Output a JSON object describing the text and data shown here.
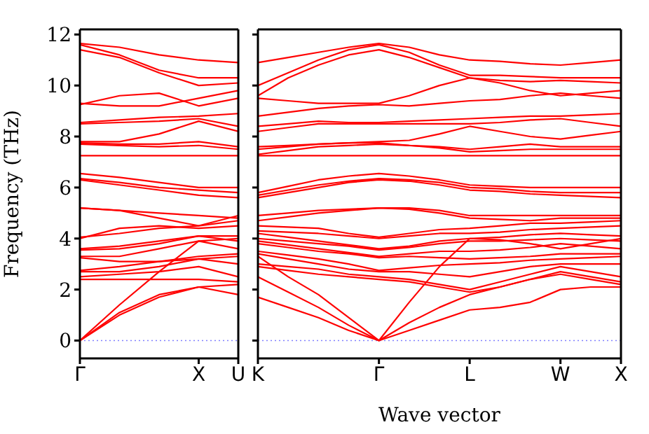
{
  "chart_data": [
    {
      "type": "line",
      "ylabel": "Frequency (THz)",
      "color": "#ff0000",
      "categories": [
        "Γ",
        null,
        null,
        "X",
        "U"
      ],
      "ylim": [
        -0.7,
        12.2
      ],
      "yticks": [
        0,
        2,
        4,
        6,
        8,
        10,
        12
      ],
      "ref_lines": [
        {
          "axis": "y",
          "value": 0,
          "label": null,
          "color": "#8080ff",
          "line_style": "dotted"
        }
      ],
      "series": [
        {
          "values": [
            0,
            1.0,
            1.7,
            2.1,
            1.8
          ]
        },
        {
          "values": [
            0,
            1.1,
            1.8,
            2.1,
            2.2
          ]
        },
        {
          "values": [
            0,
            1.4,
            2.7,
            3.9,
            4.0
          ]
        },
        {
          "values": [
            2.4,
            2.4,
            2.4,
            2.4,
            2.3
          ]
        },
        {
          "values": [
            2.5,
            2.6,
            2.7,
            2.9,
            2.5
          ]
        },
        {
          "values": [
            2.7,
            2.7,
            2.9,
            3.2,
            3.0
          ]
        },
        {
          "values": [
            2.75,
            2.9,
            3.1,
            3.2,
            3.3
          ]
        },
        {
          "values": [
            3.25,
            3.1,
            3.1,
            3.3,
            3.4
          ]
        },
        {
          "values": [
            3.3,
            3.3,
            3.6,
            3.9,
            3.6
          ]
        },
        {
          "values": [
            3.55,
            3.6,
            3.8,
            4.1,
            3.9
          ]
        },
        {
          "values": [
            3.6,
            3.7,
            3.9,
            4.1,
            4.1
          ]
        },
        {
          "values": [
            4.0,
            4.4,
            4.5,
            4.4,
            4.5
          ]
        },
        {
          "values": [
            4.05,
            4.2,
            4.4,
            4.5,
            4.7
          ]
        },
        {
          "values": [
            5.2,
            5.1,
            5.0,
            4.9,
            4.8
          ]
        },
        {
          "values": [
            5.2,
            5.1,
            4.8,
            4.5,
            4.9
          ]
        },
        {
          "values": [
            6.3,
            6.1,
            5.9,
            5.7,
            5.6
          ]
        },
        {
          "values": [
            6.35,
            6.2,
            6.0,
            5.9,
            5.8
          ]
        },
        {
          "values": [
            6.55,
            6.4,
            6.2,
            6.0,
            6.0
          ]
        },
        {
          "values": [
            7.25,
            7.25,
            7.25,
            7.25,
            7.25
          ]
        },
        {
          "values": [
            7.7,
            7.65,
            7.6,
            7.65,
            7.5
          ]
        },
        {
          "values": [
            7.75,
            7.7,
            7.7,
            7.8,
            7.6
          ]
        },
        {
          "values": [
            7.8,
            7.8,
            8.1,
            8.6,
            8.2
          ]
        },
        {
          "values": [
            8.5,
            8.55,
            8.6,
            8.7,
            8.4
          ]
        },
        {
          "values": [
            8.55,
            8.65,
            8.75,
            8.8,
            8.9
          ]
        },
        {
          "values": [
            9.25,
            9.6,
            9.7,
            9.2,
            9.5
          ]
        },
        {
          "values": [
            9.3,
            9.2,
            9.2,
            9.5,
            9.8
          ]
        },
        {
          "values": [
            11.4,
            11.1,
            10.5,
            10.0,
            10.1
          ]
        },
        {
          "values": [
            11.6,
            11.2,
            10.6,
            10.3,
            10.3
          ]
        },
        {
          "values": [
            11.65,
            11.5,
            11.2,
            11.0,
            10.9
          ]
        }
      ]
    },
    {
      "type": "line",
      "xlabel": "Wave vector",
      "tick_labels": "x",
      "color": "#ff0000",
      "categories": [
        "K",
        null,
        null,
        null,
        "Γ",
        null,
        null,
        "L",
        null,
        null,
        "W",
        null,
        "X"
      ],
      "ylim": [
        -0.7,
        12.2
      ],
      "yticks": [
        {
          "value": 0,
          "label": null
        },
        {
          "value": 2,
          "label": null
        },
        {
          "value": 4,
          "label": null
        },
        {
          "value": 6,
          "label": null
        },
        {
          "value": 8,
          "label": null
        },
        {
          "value": 10,
          "label": null
        },
        {
          "value": 12,
          "label": null
        }
      ],
      "ref_lines": [
        {
          "axis": "y",
          "value": 0,
          "label": null,
          "color": "#8080ff",
          "line_style": "dotted"
        }
      ],
      "series": [
        {
          "values": [
            1.7,
            1.3,
            0.9,
            0.4,
            0,
            0.4,
            0.8,
            1.2,
            1.3,
            1.5,
            2.0,
            2.1,
            2.1
          ]
        },
        {
          "values": [
            2.5,
            1.9,
            1.3,
            0.6,
            0,
            0.7,
            1.3,
            1.8,
            2.1,
            2.4,
            2.6,
            2.4,
            2.2
          ]
        },
        {
          "values": [
            3.3,
            2.5,
            1.8,
            0.9,
            0,
            1.5,
            2.9,
            4.0,
            3.95,
            3.8,
            3.6,
            3.8,
            4.0
          ]
        },
        {
          "values": [
            2.9,
            2.75,
            2.6,
            2.5,
            2.4,
            2.3,
            2.1,
            1.9,
            2.1,
            2.4,
            2.7,
            2.5,
            2.3
          ]
        },
        {
          "values": [
            3.0,
            2.9,
            2.8,
            2.6,
            2.5,
            2.4,
            2.2,
            2.0,
            2.3,
            2.6,
            2.9,
            2.7,
            2.5
          ]
        },
        {
          "values": [
            3.4,
            3.2,
            3.0,
            2.8,
            2.7,
            2.7,
            2.6,
            2.5,
            2.7,
            2.9,
            3.0,
            3.0,
            3.0
          ]
        },
        {
          "values": [
            3.5,
            3.35,
            3.2,
            3.0,
            2.75,
            2.85,
            2.95,
            3.0,
            3.05,
            3.15,
            3.2,
            3.25,
            3.3
          ]
        },
        {
          "values": [
            3.8,
            3.65,
            3.5,
            3.4,
            3.25,
            3.3,
            3.25,
            3.2,
            3.25,
            3.3,
            3.4,
            3.4,
            3.4
          ]
        },
        {
          "values": [
            3.9,
            3.75,
            3.6,
            3.45,
            3.3,
            3.4,
            3.5,
            3.5,
            3.55,
            3.65,
            3.8,
            3.7,
            3.6
          ]
        },
        {
          "values": [
            4.0,
            3.9,
            3.8,
            3.7,
            3.55,
            3.65,
            3.8,
            3.9,
            3.9,
            3.95,
            4.0,
            3.95,
            3.9
          ]
        },
        {
          "values": [
            4.2,
            4.05,
            3.9,
            3.75,
            3.6,
            3.7,
            3.9,
            4.0,
            4.05,
            4.15,
            4.2,
            4.15,
            4.1
          ]
        },
        {
          "values": [
            4.3,
            4.25,
            4.2,
            4.1,
            4.0,
            4.1,
            4.2,
            4.2,
            4.25,
            4.35,
            4.4,
            4.45,
            4.5
          ]
        },
        {
          "values": [
            4.5,
            4.45,
            4.4,
            4.2,
            4.05,
            4.2,
            4.35,
            4.4,
            4.5,
            4.6,
            4.6,
            4.65,
            4.7
          ]
        },
        {
          "values": [
            4.7,
            4.85,
            5.0,
            5.1,
            5.2,
            5.15,
            5.0,
            4.8,
            4.75,
            4.7,
            4.8,
            4.8,
            4.8
          ]
        },
        {
          "values": [
            4.9,
            5.0,
            5.1,
            5.15,
            5.2,
            5.2,
            5.1,
            4.9,
            4.9,
            4.9,
            4.9,
            4.9,
            4.9
          ]
        },
        {
          "values": [
            5.6,
            5.8,
            6.0,
            6.2,
            6.3,
            6.25,
            6.1,
            5.9,
            5.85,
            5.75,
            5.7,
            5.65,
            5.6
          ]
        },
        {
          "values": [
            5.7,
            5.9,
            6.1,
            6.25,
            6.35,
            6.3,
            6.2,
            6.0,
            5.95,
            5.85,
            5.8,
            5.8,
            5.8
          ]
        },
        {
          "values": [
            5.8,
            6.05,
            6.3,
            6.45,
            6.55,
            6.45,
            6.3,
            6.1,
            6.05,
            6.0,
            6.0,
            6.0,
            6.0
          ]
        },
        {
          "values": [
            7.25,
            7.25,
            7.25,
            7.25,
            7.25,
            7.25,
            7.25,
            7.25,
            7.25,
            7.25,
            7.25,
            7.25,
            7.25
          ]
        },
        {
          "values": [
            7.3,
            7.45,
            7.6,
            7.65,
            7.7,
            7.65,
            7.55,
            7.4,
            7.45,
            7.5,
            7.5,
            7.5,
            7.5
          ]
        },
        {
          "values": [
            7.5,
            7.6,
            7.7,
            7.75,
            7.75,
            7.65,
            7.6,
            7.5,
            7.6,
            7.7,
            7.6,
            7.6,
            7.6
          ]
        },
        {
          "values": [
            7.6,
            7.65,
            7.7,
            7.75,
            7.8,
            7.85,
            8.1,
            8.4,
            8.2,
            8.0,
            7.9,
            8.05,
            8.2
          ]
        },
        {
          "values": [
            8.2,
            8.35,
            8.5,
            8.5,
            8.5,
            8.5,
            8.5,
            8.5,
            8.55,
            8.65,
            8.7,
            8.55,
            8.4
          ]
        },
        {
          "values": [
            8.4,
            8.5,
            8.6,
            8.55,
            8.55,
            8.6,
            8.65,
            8.7,
            8.75,
            8.8,
            8.8,
            8.85,
            8.9
          ]
        },
        {
          "values": [
            8.8,
            8.95,
            9.1,
            9.2,
            9.25,
            9.2,
            9.3,
            9.4,
            9.45,
            9.6,
            9.7,
            9.6,
            9.5
          ]
        },
        {
          "values": [
            9.5,
            9.4,
            9.3,
            9.3,
            9.3,
            9.6,
            10.0,
            10.3,
            10.1,
            9.8,
            9.6,
            9.7,
            9.8
          ]
        },
        {
          "values": [
            9.6,
            10.3,
            10.8,
            11.2,
            11.4,
            11.1,
            10.7,
            10.3,
            10.2,
            10.15,
            10.2,
            10.15,
            10.1
          ]
        },
        {
          "values": [
            10.0,
            10.5,
            11.0,
            11.4,
            11.6,
            11.3,
            10.8,
            10.4,
            10.4,
            10.35,
            10.3,
            10.3,
            10.3
          ]
        },
        {
          "values": [
            10.9,
            11.1,
            11.3,
            11.5,
            11.65,
            11.5,
            11.2,
            11.0,
            10.95,
            10.85,
            10.8,
            10.9,
            11.0
          ]
        }
      ]
    }
  ]
}
